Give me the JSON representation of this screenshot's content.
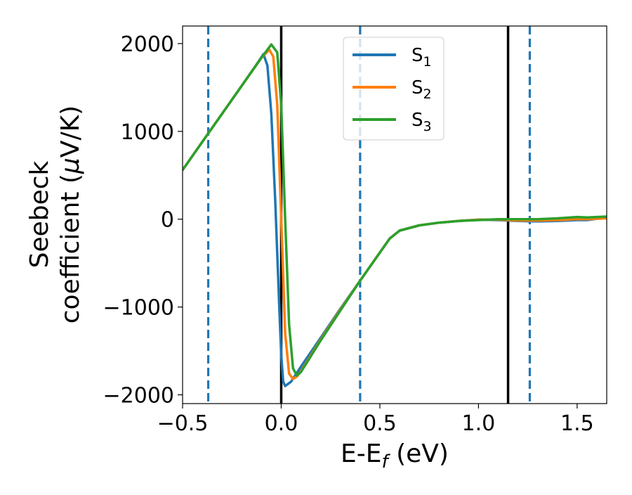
{
  "chart_data": {
    "type": "line",
    "title": "",
    "xlabel": "E-E",
    "xlabel_sub": "f",
    "xlabel_unit": " (eV)",
    "ylabel_line1": "Seebeck",
    "ylabel_line2": "coefficient  (",
    "ylabel_mu": "μ",
    "ylabel_unit": "V/K)",
    "xlim": [
      -0.5,
      1.65
    ],
    "ylim": [
      -2100,
      2200
    ],
    "xticks": [
      -0.5,
      0.0,
      0.5,
      1.0,
      1.5
    ],
    "xtick_labels": [
      "−0.5",
      "0.0",
      "0.5",
      "1.0",
      "1.5"
    ],
    "yticks": [
      -2000,
      -1000,
      0,
      1000,
      2000
    ],
    "ytick_labels": [
      "−2000",
      "−1000",
      "0",
      "1000",
      "2000"
    ],
    "legend_position": "top-center",
    "grid": false,
    "series": [
      {
        "name": "S",
        "subscript": "1",
        "color": "#1f77b4",
        "x": [
          -0.5,
          -0.4,
          -0.3,
          -0.2,
          -0.12,
          -0.09,
          -0.07,
          -0.05,
          -0.03,
          -0.01,
          0.0,
          0.01,
          0.02,
          0.05,
          0.1,
          0.2,
          0.3,
          0.4,
          0.5,
          0.55,
          0.6,
          0.7,
          0.8,
          0.9,
          1.0,
          1.1,
          1.2,
          1.3,
          1.4,
          1.5,
          1.55,
          1.65
        ],
        "y": [
          560,
          880,
          1200,
          1520,
          1780,
          1880,
          1750,
          1200,
          200,
          -1000,
          -1550,
          -1850,
          -1900,
          -1850,
          -1680,
          -1350,
          -1020,
          -700,
          -380,
          -220,
          -130,
          -70,
          -40,
          -20,
          -5,
          -10,
          -20,
          -25,
          -20,
          -10,
          -10,
          20
        ]
      },
      {
        "name": "S",
        "subscript": "2",
        "color": "#ff7f0e",
        "x": [
          -0.5,
          -0.4,
          -0.3,
          -0.2,
          -0.1,
          -0.06,
          -0.04,
          -0.02,
          0.0,
          0.02,
          0.04,
          0.06,
          0.08,
          0.1,
          0.2,
          0.3,
          0.4,
          0.5,
          0.55,
          0.6,
          0.7,
          0.8,
          0.9,
          1.0,
          1.1,
          1.2,
          1.3,
          1.4,
          1.5,
          1.55,
          1.65
        ],
        "y": [
          560,
          880,
          1200,
          1520,
          1840,
          1930,
          1850,
          1300,
          0,
          -1300,
          -1760,
          -1820,
          -1790,
          -1730,
          -1370,
          -1030,
          -700,
          -380,
          -220,
          -130,
          -70,
          -40,
          -20,
          -5,
          -5,
          -15,
          -15,
          -10,
          0,
          0,
          10
        ]
      },
      {
        "name": "S",
        "subscript": "3",
        "color": "#2ca02c",
        "x": [
          -0.5,
          -0.4,
          -0.3,
          -0.2,
          -0.1,
          -0.05,
          -0.02,
          0.0,
          0.02,
          0.04,
          0.06,
          0.08,
          0.1,
          0.2,
          0.3,
          0.4,
          0.5,
          0.55,
          0.6,
          0.7,
          0.8,
          0.9,
          1.0,
          1.1,
          1.2,
          1.3,
          1.4,
          1.5,
          1.55,
          1.65
        ],
        "y": [
          560,
          880,
          1200,
          1520,
          1840,
          1990,
          1900,
          1300,
          0,
          -1200,
          -1700,
          -1780,
          -1740,
          -1380,
          -1040,
          -700,
          -380,
          -220,
          -130,
          -70,
          -40,
          -20,
          -10,
          0,
          0,
          0,
          10,
          25,
          20,
          30
        ]
      }
    ],
    "vertical_lines": [
      {
        "x": -0.37,
        "style": "dashed",
        "color": "#1f77b4"
      },
      {
        "x": 0.0,
        "style": "solid",
        "color": "#000000"
      },
      {
        "x": 0.4,
        "style": "dashed",
        "color": "#1f77b4"
      },
      {
        "x": 1.15,
        "style": "solid",
        "color": "#000000"
      },
      {
        "x": 1.26,
        "style": "dashed",
        "color": "#1f77b4"
      }
    ]
  }
}
